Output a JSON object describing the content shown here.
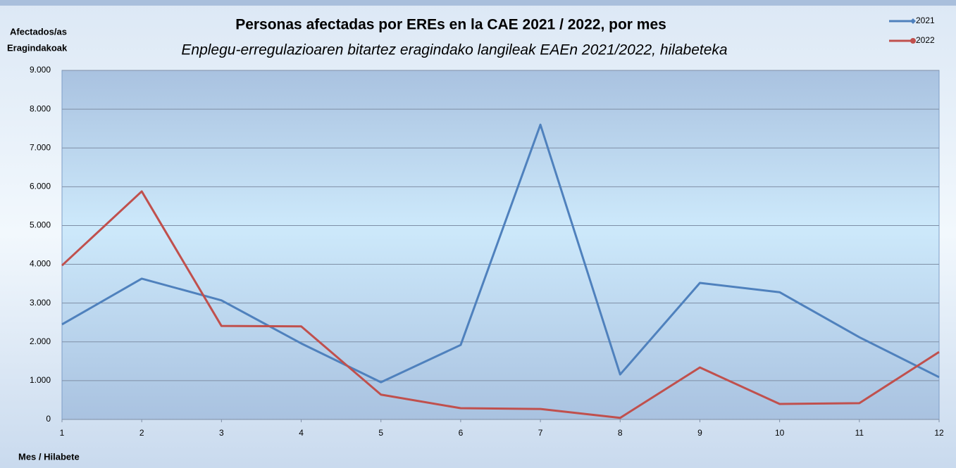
{
  "chart_data": {
    "type": "line",
    "title": "Personas afectadas por EREs en la CAE 2021 / 2022, por mes",
    "subtitle": "Enplegu-erregulazioaren bitartez eragindako langileak EAEn 2021/2022, hilabeteka",
    "ylabel": [
      "Afectados/as",
      "Eragindakoak"
    ],
    "xlabel": "Mes / Hilabete",
    "x": [
      1,
      2,
      3,
      4,
      5,
      6,
      7,
      8,
      9,
      10,
      11,
      12
    ],
    "xlim": [
      1,
      12
    ],
    "xticks": [
      1,
      2,
      3,
      4,
      5,
      6,
      7,
      8,
      9,
      10,
      11,
      12
    ],
    "ylim": [
      0,
      9000
    ],
    "yticks": [
      0,
      {
        "value": 1000,
        "label": "1.000"
      },
      {
        "value": 2000,
        "label": "2.000"
      },
      {
        "value": 3000,
        "label": "3.000"
      },
      {
        "value": 4000,
        "label": "4.000"
      },
      {
        "value": 5000,
        "label": "5.000"
      },
      {
        "value": 6000,
        "label": "6.000"
      },
      {
        "value": 7000,
        "label": "7.000"
      },
      {
        "value": 8000,
        "label": "8.000"
      },
      {
        "value": 9000,
        "label": "9.000"
      }
    ],
    "grid": true,
    "legend": "top-right",
    "series": [
      {
        "name": "2021",
        "color": "#4f81bd",
        "values": [
          2450,
          3630,
          3070,
          1960,
          960,
          1920,
          7600,
          1160,
          3520,
          3280,
          2120,
          1090
        ]
      },
      {
        "name": "2022",
        "color": "#c0504d",
        "values": [
          3970,
          5880,
          2410,
          2400,
          640,
          290,
          270,
          40,
          1340,
          400,
          420,
          1740
        ]
      }
    ]
  }
}
